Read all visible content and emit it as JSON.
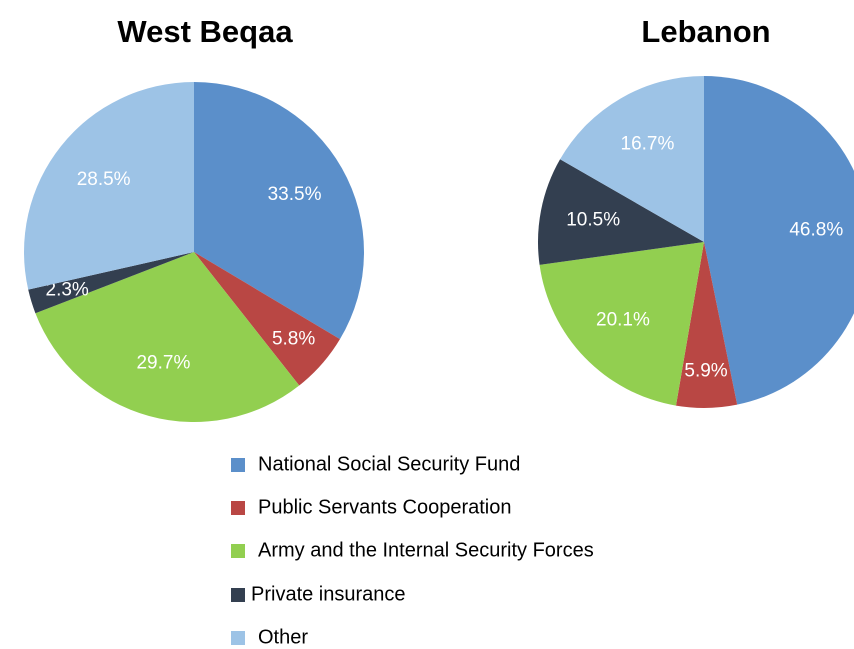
{
  "chart_data": [
    {
      "type": "pie",
      "title": "West Beqaa",
      "values": [
        33.5,
        5.8,
        29.7,
        2.3,
        28.5
      ],
      "value_labels": [
        "33.5%",
        "5.8%",
        "29.7%",
        "2.3%",
        "28.5%"
      ]
    },
    {
      "type": "pie",
      "title": "Lebanon",
      "values": [
        46.8,
        5.9,
        20.1,
        10.5,
        16.7
      ],
      "value_labels": [
        "46.8%",
        "5.9%",
        "20.1%",
        "10.5%",
        "16.7%"
      ]
    }
  ],
  "legend": {
    "categories": [
      "National Social Security Fund",
      "Public Servants Cooperation",
      "Army and the Internal Security Forces",
      "Private insurance",
      "Other"
    ],
    "colors": [
      "#5b8fca",
      "#b94744",
      "#92cf50",
      "#333f50",
      "#9dc3e6"
    ]
  }
}
